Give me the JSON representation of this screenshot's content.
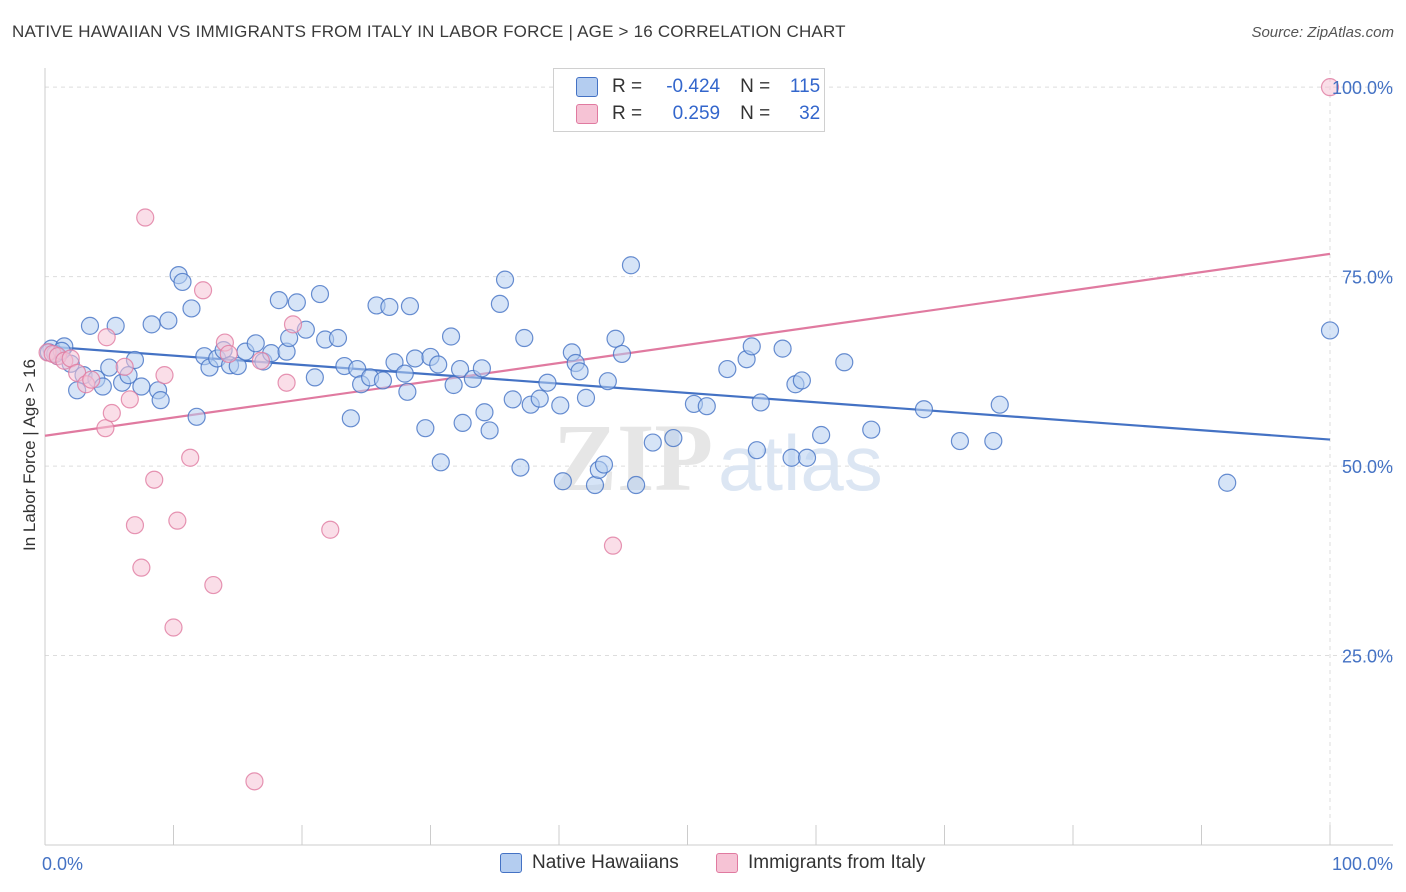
{
  "title": "NATIVE HAWAIIAN VS IMMIGRANTS FROM ITALY IN LABOR FORCE | AGE > 16 CORRELATION CHART",
  "source": "Source: ZipAtlas.com",
  "watermark": {
    "zip": "ZIP",
    "atlas": "atlas"
  },
  "legend": {
    "r_label": "R =",
    "n_label": "N =",
    "rows": [
      {
        "r": "-0.424",
        "n": "115",
        "color": "#4472c4",
        "fill": "#b4cdf0"
      },
      {
        "r": "0.259",
        "n": "32",
        "color": "#e07aa0",
        "fill": "#f6c3d5"
      }
    ]
  },
  "bottom_legend": [
    "Native Hawaiians",
    "Immigrants from Italy"
  ],
  "chart_data": {
    "type": "scatter",
    "title": "NATIVE HAWAIIAN VS IMMIGRANTS FROM ITALY IN LABOR FORCE | AGE > 16 CORRELATION CHART",
    "xlabel": "",
    "ylabel": "In Labor Force | Age > 16",
    "xlim": [
      0,
      100
    ],
    "ylim": [
      0,
      102
    ],
    "x_tick_labels": [
      "0.0%",
      "100.0%"
    ],
    "y_ticks": [
      25,
      50,
      75,
      100
    ],
    "y_tick_labels": [
      "25.0%",
      "50.0%",
      "75.0%",
      "100.0%"
    ],
    "grid": true,
    "series": [
      {
        "name": "Native Hawaiians",
        "color": "#4472c4",
        "fill": "#b4cdf0",
        "trend": {
          "x": [
            0,
            100
          ],
          "y": [
            65.8,
            53.5
          ]
        },
        "points": [
          [
            0.5,
            65.5
          ],
          [
            1.0,
            64.5
          ],
          [
            1.5,
            65.8
          ],
          [
            2.0,
            63.5
          ],
          [
            2.5,
            60.0
          ],
          [
            3.0,
            62.0
          ],
          [
            3.5,
            68.5
          ],
          [
            4.0,
            61.5
          ],
          [
            4.5,
            60.5
          ],
          [
            5.0,
            63.0
          ],
          [
            5.5,
            68.5
          ],
          [
            6.0,
            61.0
          ],
          [
            6.5,
            62.0
          ],
          [
            7.0,
            64.0
          ],
          [
            7.5,
            60.5
          ],
          [
            8.3,
            68.7
          ],
          [
            8.8,
            60.0
          ],
          [
            9.0,
            58.7
          ],
          [
            9.6,
            69.2
          ],
          [
            10.4,
            75.2
          ],
          [
            10.7,
            74.3
          ],
          [
            11.4,
            70.8
          ],
          [
            11.8,
            56.5
          ],
          [
            12.4,
            64.5
          ],
          [
            12.8,
            63.0
          ],
          [
            13.4,
            64.2
          ],
          [
            13.9,
            65.3
          ],
          [
            14.4,
            63.3
          ],
          [
            15.0,
            63.2
          ],
          [
            15.6,
            65.1
          ],
          [
            16.4,
            66.2
          ],
          [
            17.0,
            63.8
          ],
          [
            17.6,
            64.9
          ],
          [
            18.2,
            71.9
          ],
          [
            18.8,
            65.1
          ],
          [
            19.0,
            66.9
          ],
          [
            19.6,
            71.6
          ],
          [
            20.3,
            68.0
          ],
          [
            21.0,
            61.7
          ],
          [
            21.4,
            72.7
          ],
          [
            21.8,
            66.7
          ],
          [
            22.8,
            66.9
          ],
          [
            23.3,
            63.2
          ],
          [
            23.8,
            56.3
          ],
          [
            24.3,
            62.8
          ],
          [
            24.6,
            60.8
          ],
          [
            25.3,
            61.7
          ],
          [
            25.8,
            71.2
          ],
          [
            26.3,
            61.3
          ],
          [
            26.8,
            71.0
          ],
          [
            27.2,
            63.7
          ],
          [
            28.0,
            62.2
          ],
          [
            28.2,
            59.8
          ],
          [
            28.4,
            71.1
          ],
          [
            28.8,
            64.2
          ],
          [
            29.6,
            55.0
          ],
          [
            30.0,
            64.4
          ],
          [
            30.6,
            63.4
          ],
          [
            30.8,
            50.5
          ],
          [
            31.6,
            67.1
          ],
          [
            31.8,
            60.7
          ],
          [
            32.3,
            62.8
          ],
          [
            32.5,
            55.7
          ],
          [
            33.3,
            61.5
          ],
          [
            34.0,
            62.9
          ],
          [
            34.2,
            57.1
          ],
          [
            34.6,
            54.7
          ],
          [
            35.4,
            71.4
          ],
          [
            35.8,
            74.6
          ],
          [
            36.4,
            58.8
          ],
          [
            37.0,
            49.8
          ],
          [
            37.3,
            66.9
          ],
          [
            37.8,
            58.1
          ],
          [
            38.5,
            58.9
          ],
          [
            39.1,
            61.0
          ],
          [
            40.1,
            58.0
          ],
          [
            40.3,
            48.0
          ],
          [
            41.0,
            65.0
          ],
          [
            41.3,
            63.6
          ],
          [
            41.6,
            62.5
          ],
          [
            42.1,
            59.0
          ],
          [
            42.8,
            47.5
          ],
          [
            43.1,
            49.5
          ],
          [
            43.5,
            50.2
          ],
          [
            43.8,
            61.2
          ],
          [
            44.4,
            66.8
          ],
          [
            44.9,
            64.8
          ],
          [
            45.6,
            76.5
          ],
          [
            46.0,
            47.5
          ],
          [
            47.3,
            53.1
          ],
          [
            48.9,
            53.7
          ],
          [
            50.5,
            58.2
          ],
          [
            51.5,
            57.9
          ],
          [
            53.1,
            62.8
          ],
          [
            54.6,
            64.1
          ],
          [
            55.0,
            65.8
          ],
          [
            55.4,
            52.1
          ],
          [
            55.7,
            58.4
          ],
          [
            57.4,
            65.5
          ],
          [
            58.1,
            51.1
          ],
          [
            58.4,
            60.8
          ],
          [
            58.9,
            61.3
          ],
          [
            59.3,
            51.1
          ],
          [
            60.4,
            54.1
          ],
          [
            62.2,
            63.7
          ],
          [
            64.3,
            54.8
          ],
          [
            68.4,
            57.5
          ],
          [
            71.2,
            53.3
          ],
          [
            73.8,
            53.3
          ],
          [
            74.3,
            58.1
          ],
          [
            92.0,
            47.8
          ],
          [
            100.0,
            67.9
          ],
          [
            0.3,
            65.0
          ],
          [
            0.8,
            64.8
          ],
          [
            1.3,
            65.2
          ]
        ]
      },
      {
        "name": "Immigrants from Italy",
        "color": "#e07aa0",
        "fill": "#f6c3d5",
        "trend": {
          "x": [
            0,
            100
          ],
          "y": [
            54.0,
            78.0
          ]
        },
        "points": [
          [
            0.2,
            65.0
          ],
          [
            0.6,
            64.8
          ],
          [
            1.0,
            64.5
          ],
          [
            1.5,
            63.9
          ],
          [
            2.0,
            64.2
          ],
          [
            2.5,
            62.3
          ],
          [
            3.2,
            60.8
          ],
          [
            3.6,
            61.4
          ],
          [
            4.7,
            55.0
          ],
          [
            5.2,
            57.0
          ],
          [
            4.8,
            67.0
          ],
          [
            6.2,
            63.1
          ],
          [
            6.6,
            58.8
          ],
          [
            7.0,
            42.2
          ],
          [
            7.5,
            36.6
          ],
          [
            7.8,
            82.8
          ],
          [
            8.5,
            48.2
          ],
          [
            9.3,
            62.0
          ],
          [
            10.0,
            28.7
          ],
          [
            10.3,
            42.8
          ],
          [
            11.3,
            51.1
          ],
          [
            12.3,
            73.2
          ],
          [
            13.1,
            34.3
          ],
          [
            14.0,
            66.3
          ],
          [
            14.3,
            64.8
          ],
          [
            16.3,
            8.4
          ],
          [
            16.8,
            63.9
          ],
          [
            18.8,
            61.0
          ],
          [
            19.3,
            68.7
          ],
          [
            22.2,
            41.6
          ],
          [
            44.2,
            39.5
          ],
          [
            100.0,
            100.0
          ]
        ]
      }
    ]
  }
}
